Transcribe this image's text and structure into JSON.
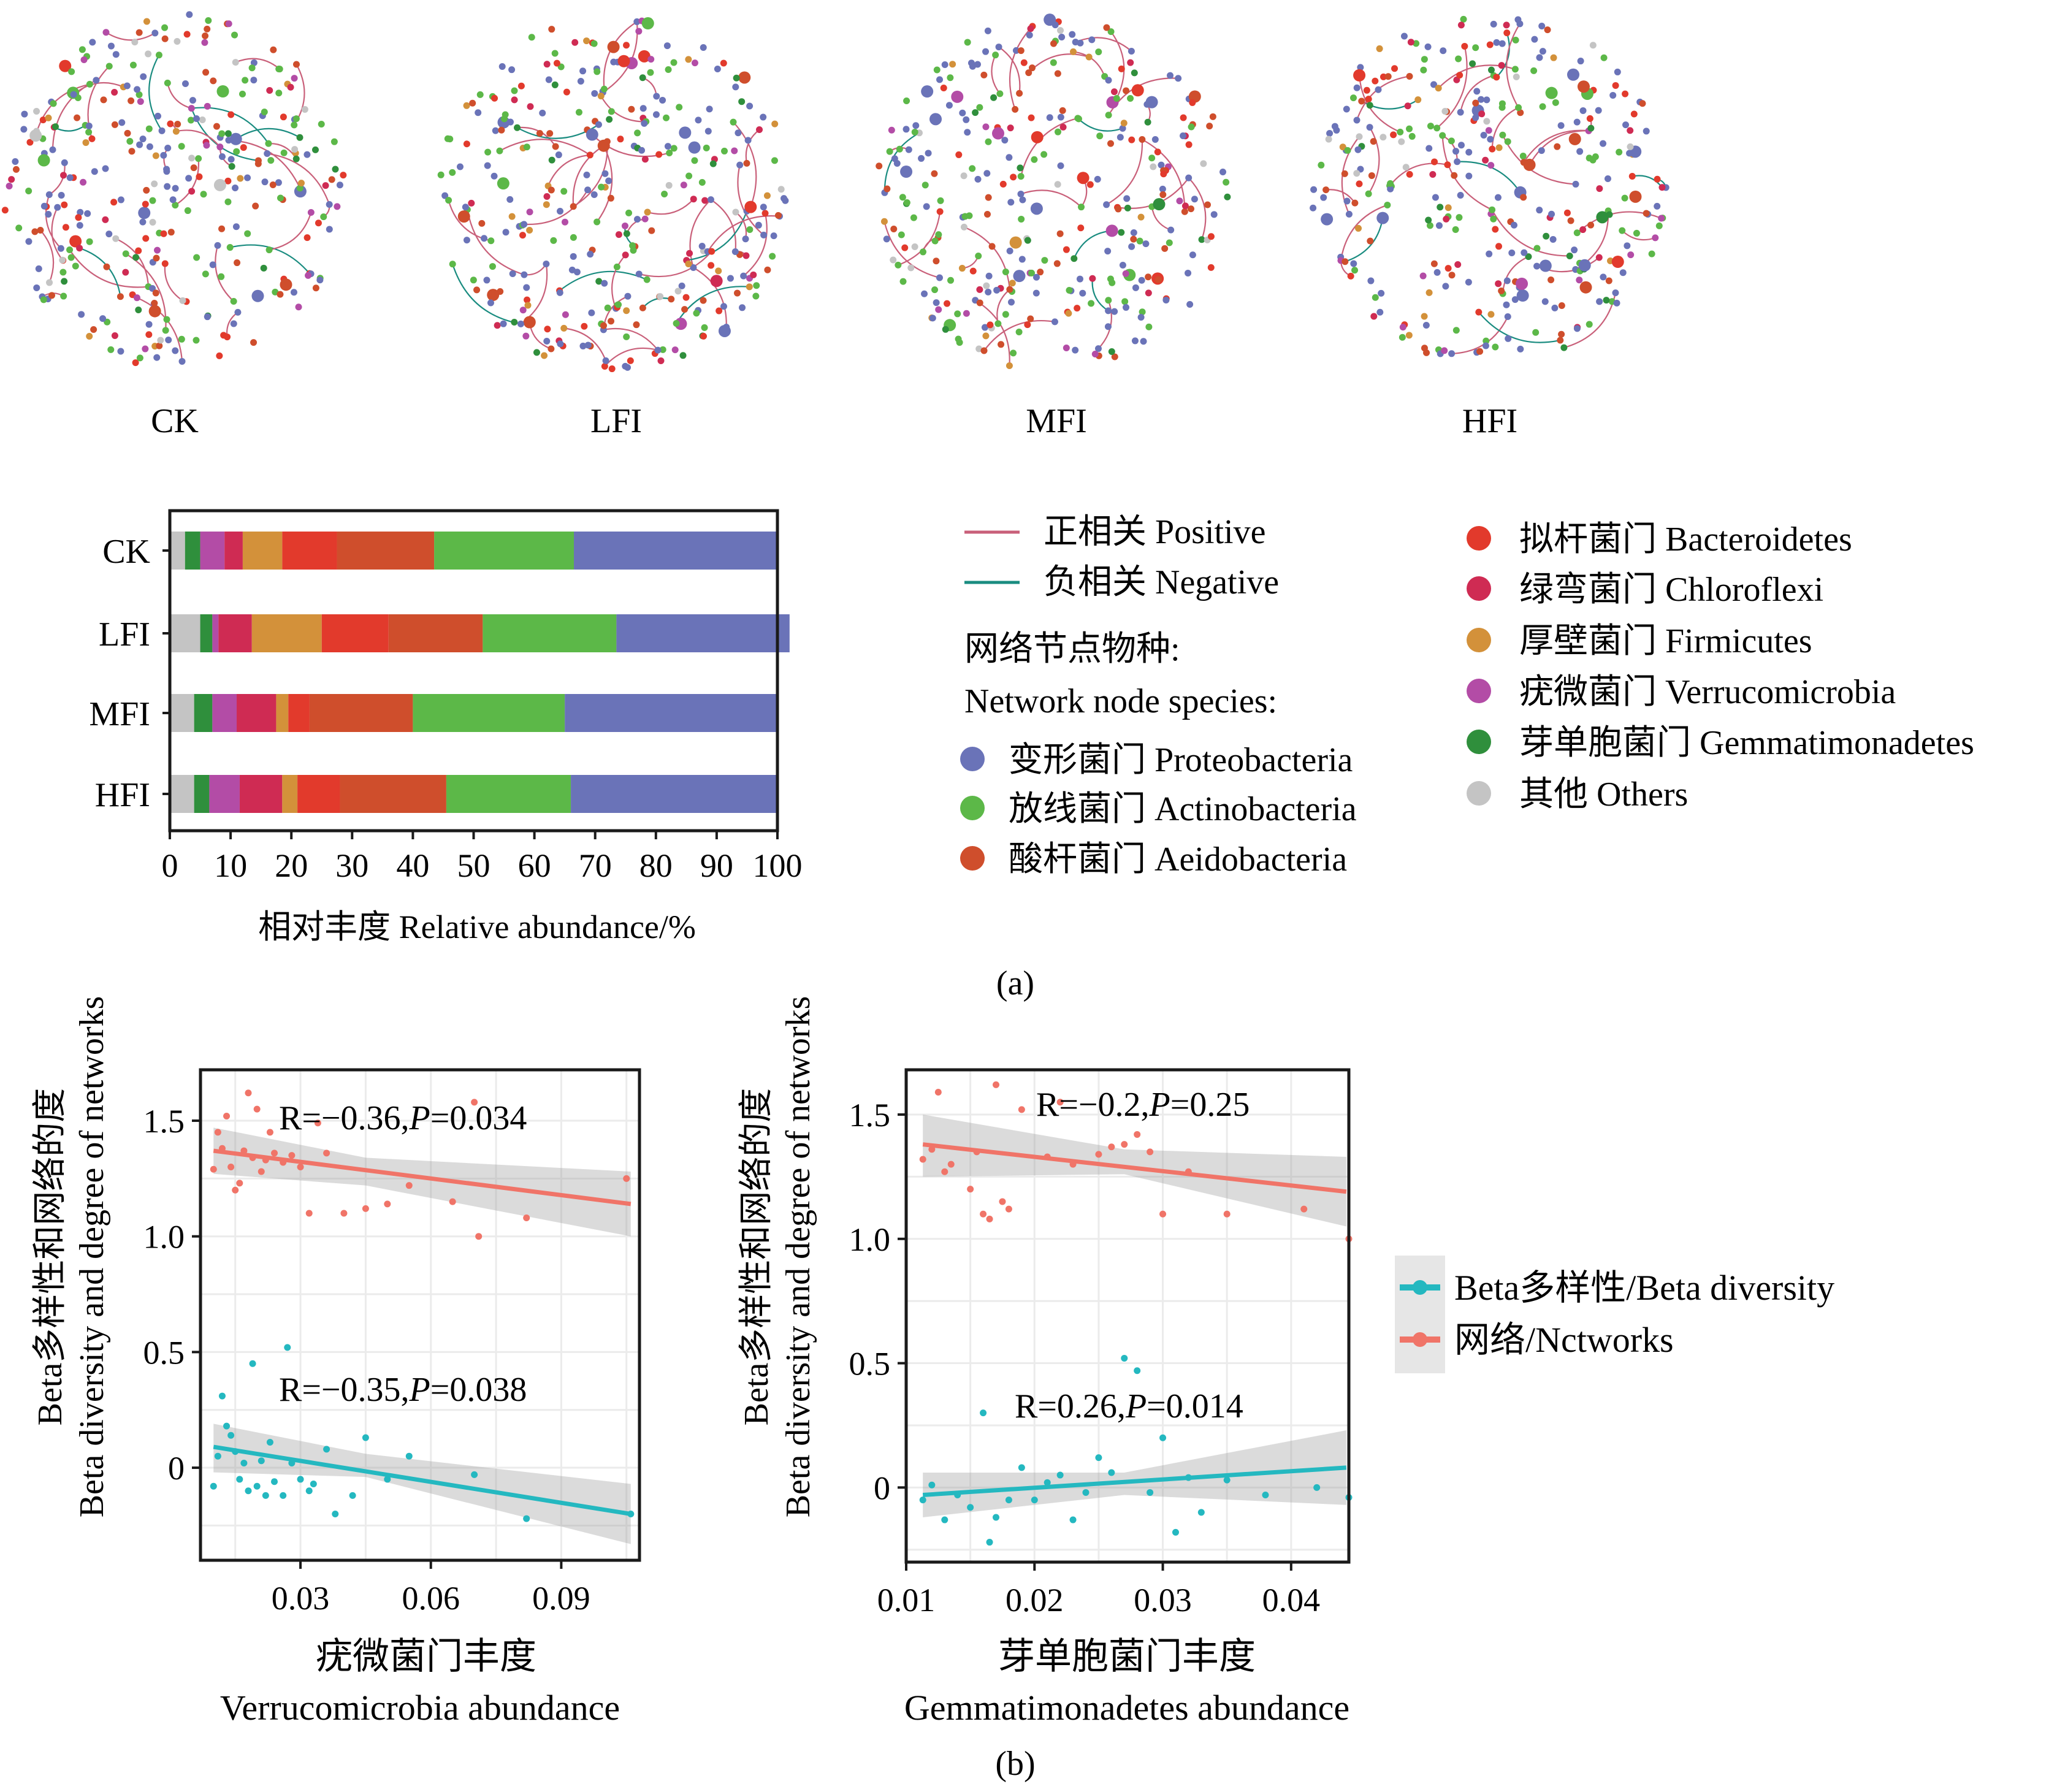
{
  "panel_labels": {
    "a": "(a)",
    "b": "(b)"
  },
  "colors": {
    "proteobacteria": "#6a73b8",
    "actinobacteria": "#5cb848",
    "aeidobacteria": "#cf4e2c",
    "bacteroidetes": "#e23a2c",
    "chloroflexi": "#cf2b53",
    "firmicutes": "#d3913a",
    "verrucomicrobia": "#b34ca6",
    "gemmatimonadetes": "#2f8f3c",
    "others": "#c4c4c4",
    "positive_edge": "#c9607a",
    "negative_edge": "#1a8c80",
    "beta_line": "#24b8c0",
    "network_line": "#f07468"
  },
  "networks": [
    {
      "label": "CK"
    },
    {
      "label": "LFI"
    },
    {
      "label": "MFI"
    },
    {
      "label": "HFI"
    }
  ],
  "legend": {
    "edges": [
      {
        "label": "正相关 Positive",
        "color_key": "positive_edge"
      },
      {
        "label": "负相关 Negative",
        "color_key": "negative_edge"
      }
    ],
    "node_title_cn": "网络节点物种:",
    "node_title_en": "Network node species:",
    "species_left": [
      {
        "label": "变形菌门 Proteobacteria",
        "color_key": "proteobacteria"
      },
      {
        "label": "放线菌门 Actinobacteria",
        "color_key": "actinobacteria"
      },
      {
        "label": "酸杆菌门 Aeidobacteria",
        "color_key": "aeidobacteria"
      }
    ],
    "species_right": [
      {
        "label": "拟杆菌门 Bacteroidetes",
        "color_key": "bacteroidetes"
      },
      {
        "label": "绿弯菌门 Chloroflexi",
        "color_key": "chloroflexi"
      },
      {
        "label": "厚壁菌门 Firmicutes",
        "color_key": "firmicutes"
      },
      {
        "label": "疣微菌门 Verrucomicrobia",
        "color_key": "verrucomicrobia"
      },
      {
        "label": "芽单胞菌门 Gemmatimonadetes",
        "color_key": "gemmatimonadetes"
      },
      {
        "label": "其他 Others",
        "color_key": "others"
      }
    ]
  },
  "chart_data": [
    {
      "type": "bar",
      "orientation": "horizontal-stacked",
      "categories": [
        "CK",
        "LFI",
        "MFI",
        "HFI"
      ],
      "xlabel": "相对丰度 Relative abundance/%",
      "xlim": [
        0,
        100
      ],
      "xticks": [
        0,
        10,
        20,
        30,
        40,
        50,
        60,
        70,
        80,
        90,
        100
      ],
      "series": [
        {
          "name": "其他 Others",
          "color_key": "others",
          "values": [
            2.5,
            5,
            4,
            4
          ]
        },
        {
          "name": "芽单胞菌门 Gemmatimonadetes",
          "color_key": "gemmatimonadetes",
          "values": [
            2.5,
            2,
            3,
            2.5
          ]
        },
        {
          "name": "疣微菌门 Verrucomicrobia",
          "color_key": "verrucomicrobia",
          "values": [
            4,
            1,
            4,
            5
          ]
        },
        {
          "name": "绿弯菌门 Chloroflexi",
          "color_key": "chloroflexi",
          "values": [
            3,
            5.5,
            6.5,
            7
          ]
        },
        {
          "name": "厚壁菌门 Firmicutes",
          "color_key": "firmicutes",
          "values": [
            6.5,
            11.5,
            2,
            2.5
          ]
        },
        {
          "name": "拟杆菌门 Bacteroidetes",
          "color_key": "bacteroidetes",
          "values": [
            9,
            11,
            3.5,
            7
          ]
        },
        {
          "name": "酸杆菌门 Aeidobacteria",
          "color_key": "aeidobacteria",
          "values": [
            16,
            15.5,
            17,
            17.5
          ]
        },
        {
          "name": "放线菌门 Actinobacteria",
          "color_key": "actinobacteria",
          "values": [
            23,
            22,
            25,
            20.5
          ]
        },
        {
          "name": "变形菌门 Proteobacteria",
          "color_key": "proteobacteria",
          "values": [
            33.5,
            28.5,
            35,
            34
          ]
        }
      ]
    },
    {
      "type": "scatter",
      "xlabel_cn": "疣微菌门丰度",
      "xlabel_en": "Verrucomicrobia abundance",
      "ylabel_cn": "Beta多样性和网络的度",
      "ylabel_en": "Beta diversity and degree of networks",
      "xlim": [
        0.007,
        0.108
      ],
      "ylim": [
        -0.4,
        1.72
      ],
      "xticks": [
        0.03,
        0.06,
        0.09
      ],
      "yticks": [
        0,
        0.5,
        1.0,
        1.5
      ],
      "xtick_labels": [
        "0.03",
        "0.06",
        "0.09"
      ],
      "ytick_labels": [
        "0",
        "0.5",
        "1.0",
        "1.5"
      ],
      "annotations": {
        "network_R": "R=−0.36,",
        "network_P_italic": "P",
        "network_P_value": "=0.034",
        "beta_R": "R=−0.35,",
        "beta_P_italic": "P",
        "beta_P_value": "=0.038"
      },
      "series": [
        {
          "name": "网络/Nctworks",
          "color_key": "network_line",
          "fit": {
            "x": [
              0.01,
              0.106
            ],
            "y": [
              1.37,
              1.14
            ],
            "band": [
              [
                0.01,
                1.27,
                1.47
              ],
              [
                0.045,
                1.22,
                1.34
              ],
              [
                0.106,
                1.0,
                1.28
              ]
            ]
          },
          "points": [
            [
              0.01,
              1.29
            ],
            [
              0.011,
              1.45
            ],
            [
              0.012,
              1.38
            ],
            [
              0.013,
              1.52
            ],
            [
              0.014,
              1.3
            ],
            [
              0.015,
              1.2
            ],
            [
              0.016,
              1.23
            ],
            [
              0.017,
              1.37
            ],
            [
              0.018,
              1.62
            ],
            [
              0.019,
              1.34
            ],
            [
              0.02,
              1.55
            ],
            [
              0.021,
              1.28
            ],
            [
              0.022,
              1.33
            ],
            [
              0.023,
              1.45
            ],
            [
              0.024,
              1.36
            ],
            [
              0.026,
              1.32
            ],
            [
              0.028,
              1.35
            ],
            [
              0.03,
              1.3
            ],
            [
              0.032,
              1.1
            ],
            [
              0.034,
              1.49
            ],
            [
              0.036,
              1.36
            ],
            [
              0.04,
              1.1
            ],
            [
              0.045,
              1.12
            ],
            [
              0.05,
              1.14
            ],
            [
              0.055,
              1.22
            ],
            [
              0.065,
              1.15
            ],
            [
              0.07,
              1.58
            ],
            [
              0.071,
              1.0
            ],
            [
              0.082,
              1.08
            ],
            [
              0.105,
              1.25
            ]
          ]
        },
        {
          "name": "Beta多样性/Beta diversity",
          "color_key": "beta_line",
          "fit": {
            "x": [
              0.01,
              0.106
            ],
            "y": [
              0.09,
              -0.2
            ],
            "band": [
              [
                0.01,
                -0.02,
                0.19
              ],
              [
                0.045,
                -0.04,
                0.06
              ],
              [
                0.106,
                -0.33,
                -0.07
              ]
            ]
          },
          "points": [
            [
              0.01,
              -0.08
            ],
            [
              0.011,
              0.05
            ],
            [
              0.012,
              0.31
            ],
            [
              0.013,
              0.18
            ],
            [
              0.014,
              0.14
            ],
            [
              0.015,
              0.07
            ],
            [
              0.016,
              -0.05
            ],
            [
              0.017,
              0.02
            ],
            [
              0.018,
              -0.1
            ],
            [
              0.019,
              0.45
            ],
            [
              0.02,
              -0.08
            ],
            [
              0.021,
              0.03
            ],
            [
              0.022,
              -0.12
            ],
            [
              0.023,
              0.11
            ],
            [
              0.024,
              -0.06
            ],
            [
              0.026,
              -0.12
            ],
            [
              0.027,
              0.52
            ],
            [
              0.028,
              0.02
            ],
            [
              0.03,
              -0.05
            ],
            [
              0.032,
              -0.1
            ],
            [
              0.033,
              -0.07
            ],
            [
              0.036,
              0.08
            ],
            [
              0.038,
              -0.2
            ],
            [
              0.042,
              -0.12
            ],
            [
              0.045,
              0.13
            ],
            [
              0.05,
              -0.05
            ],
            [
              0.055,
              0.05
            ],
            [
              0.07,
              -0.03
            ],
            [
              0.082,
              -0.22
            ],
            [
              0.106,
              -0.2
            ]
          ]
        }
      ]
    },
    {
      "type": "scatter",
      "xlabel_cn": "芽单胞菌门丰度",
      "xlabel_en": "Gemmatimonadetes abundance",
      "ylabel_cn": "Beta多样性和网络的度",
      "ylabel_en": "Beta diversity and degree of networks",
      "xlim": [
        0.01,
        0.0445
      ],
      "ylim": [
        -0.3,
        1.68
      ],
      "xticks": [
        0.01,
        0.02,
        0.03,
        0.04
      ],
      "yticks": [
        0,
        0.5,
        1.0,
        1.5
      ],
      "xtick_labels": [
        "0.01",
        "0.02",
        "0.03",
        "0.04"
      ],
      "ytick_labels": [
        "0",
        "0.5",
        "1.0",
        "1.5"
      ],
      "annotations": {
        "network_R": "R=−0.2,",
        "network_P_italic": "P",
        "network_P_value": "=0.25",
        "beta_R": "R=0.26,",
        "beta_P_italic": "P",
        "beta_P_value": "=0.014"
      },
      "series": [
        {
          "name": "网络/Nctworks",
          "color_key": "network_line",
          "fit": {
            "x": [
              0.0113,
              0.0443
            ],
            "y": [
              1.38,
              1.19
            ],
            "band": [
              [
                0.0113,
                1.25,
                1.5
              ],
              [
                0.027,
                1.26,
                1.36
              ],
              [
                0.0443,
                1.05,
                1.33
              ]
            ]
          },
          "points": [
            [
              0.0113,
              1.32
            ],
            [
              0.012,
              1.36
            ],
            [
              0.0125,
              1.59
            ],
            [
              0.013,
              1.27
            ],
            [
              0.0135,
              1.3
            ],
            [
              0.015,
              1.2
            ],
            [
              0.0155,
              1.35
            ],
            [
              0.016,
              1.1
            ],
            [
              0.0165,
              1.08
            ],
            [
              0.017,
              1.62
            ],
            [
              0.0175,
              1.15
            ],
            [
              0.018,
              1.12
            ],
            [
              0.019,
              1.52
            ],
            [
              0.021,
              1.33
            ],
            [
              0.022,
              1.55
            ],
            [
              0.023,
              1.3
            ],
            [
              0.025,
              1.34
            ],
            [
              0.026,
              1.37
            ],
            [
              0.027,
              1.38
            ],
            [
              0.028,
              1.42
            ],
            [
              0.029,
              1.35
            ],
            [
              0.03,
              1.1
            ],
            [
              0.032,
              1.27
            ],
            [
              0.035,
              1.1
            ],
            [
              0.041,
              1.12
            ],
            [
              0.0445,
              1.0
            ]
          ]
        },
        {
          "name": "Beta多样性/Beta diversity",
          "color_key": "beta_line",
          "fit": {
            "x": [
              0.0113,
              0.0443
            ],
            "y": [
              -0.03,
              0.08
            ],
            "band": [
              [
                0.0113,
                -0.12,
                0.06
              ],
              [
                0.027,
                -0.03,
                0.06
              ],
              [
                0.0443,
                -0.07,
                0.23
              ]
            ]
          },
          "points": [
            [
              0.0113,
              -0.05
            ],
            [
              0.012,
              0.01
            ],
            [
              0.013,
              -0.13
            ],
            [
              0.014,
              -0.03
            ],
            [
              0.015,
              -0.08
            ],
            [
              0.016,
              0.3
            ],
            [
              0.0165,
              -0.22
            ],
            [
              0.017,
              -0.12
            ],
            [
              0.018,
              -0.05
            ],
            [
              0.019,
              0.08
            ],
            [
              0.02,
              -0.05
            ],
            [
              0.021,
              0.02
            ],
            [
              0.022,
              0.05
            ],
            [
              0.023,
              -0.13
            ],
            [
              0.024,
              -0.02
            ],
            [
              0.025,
              0.12
            ],
            [
              0.026,
              0.06
            ],
            [
              0.027,
              0.52
            ],
            [
              0.028,
              0.47
            ],
            [
              0.029,
              -0.02
            ],
            [
              0.03,
              0.2
            ],
            [
              0.031,
              -0.18
            ],
            [
              0.032,
              0.04
            ],
            [
              0.033,
              -0.1
            ],
            [
              0.035,
              0.03
            ],
            [
              0.038,
              -0.03
            ],
            [
              0.042,
              0.0
            ],
            [
              0.0445,
              -0.04
            ]
          ]
        }
      ]
    }
  ],
  "scatter_legend": [
    {
      "label": "Beta多样性/Beta diversity",
      "color_key": "beta_line"
    },
    {
      "label": "网络/Nctworks",
      "color_key": "network_line"
    }
  ]
}
